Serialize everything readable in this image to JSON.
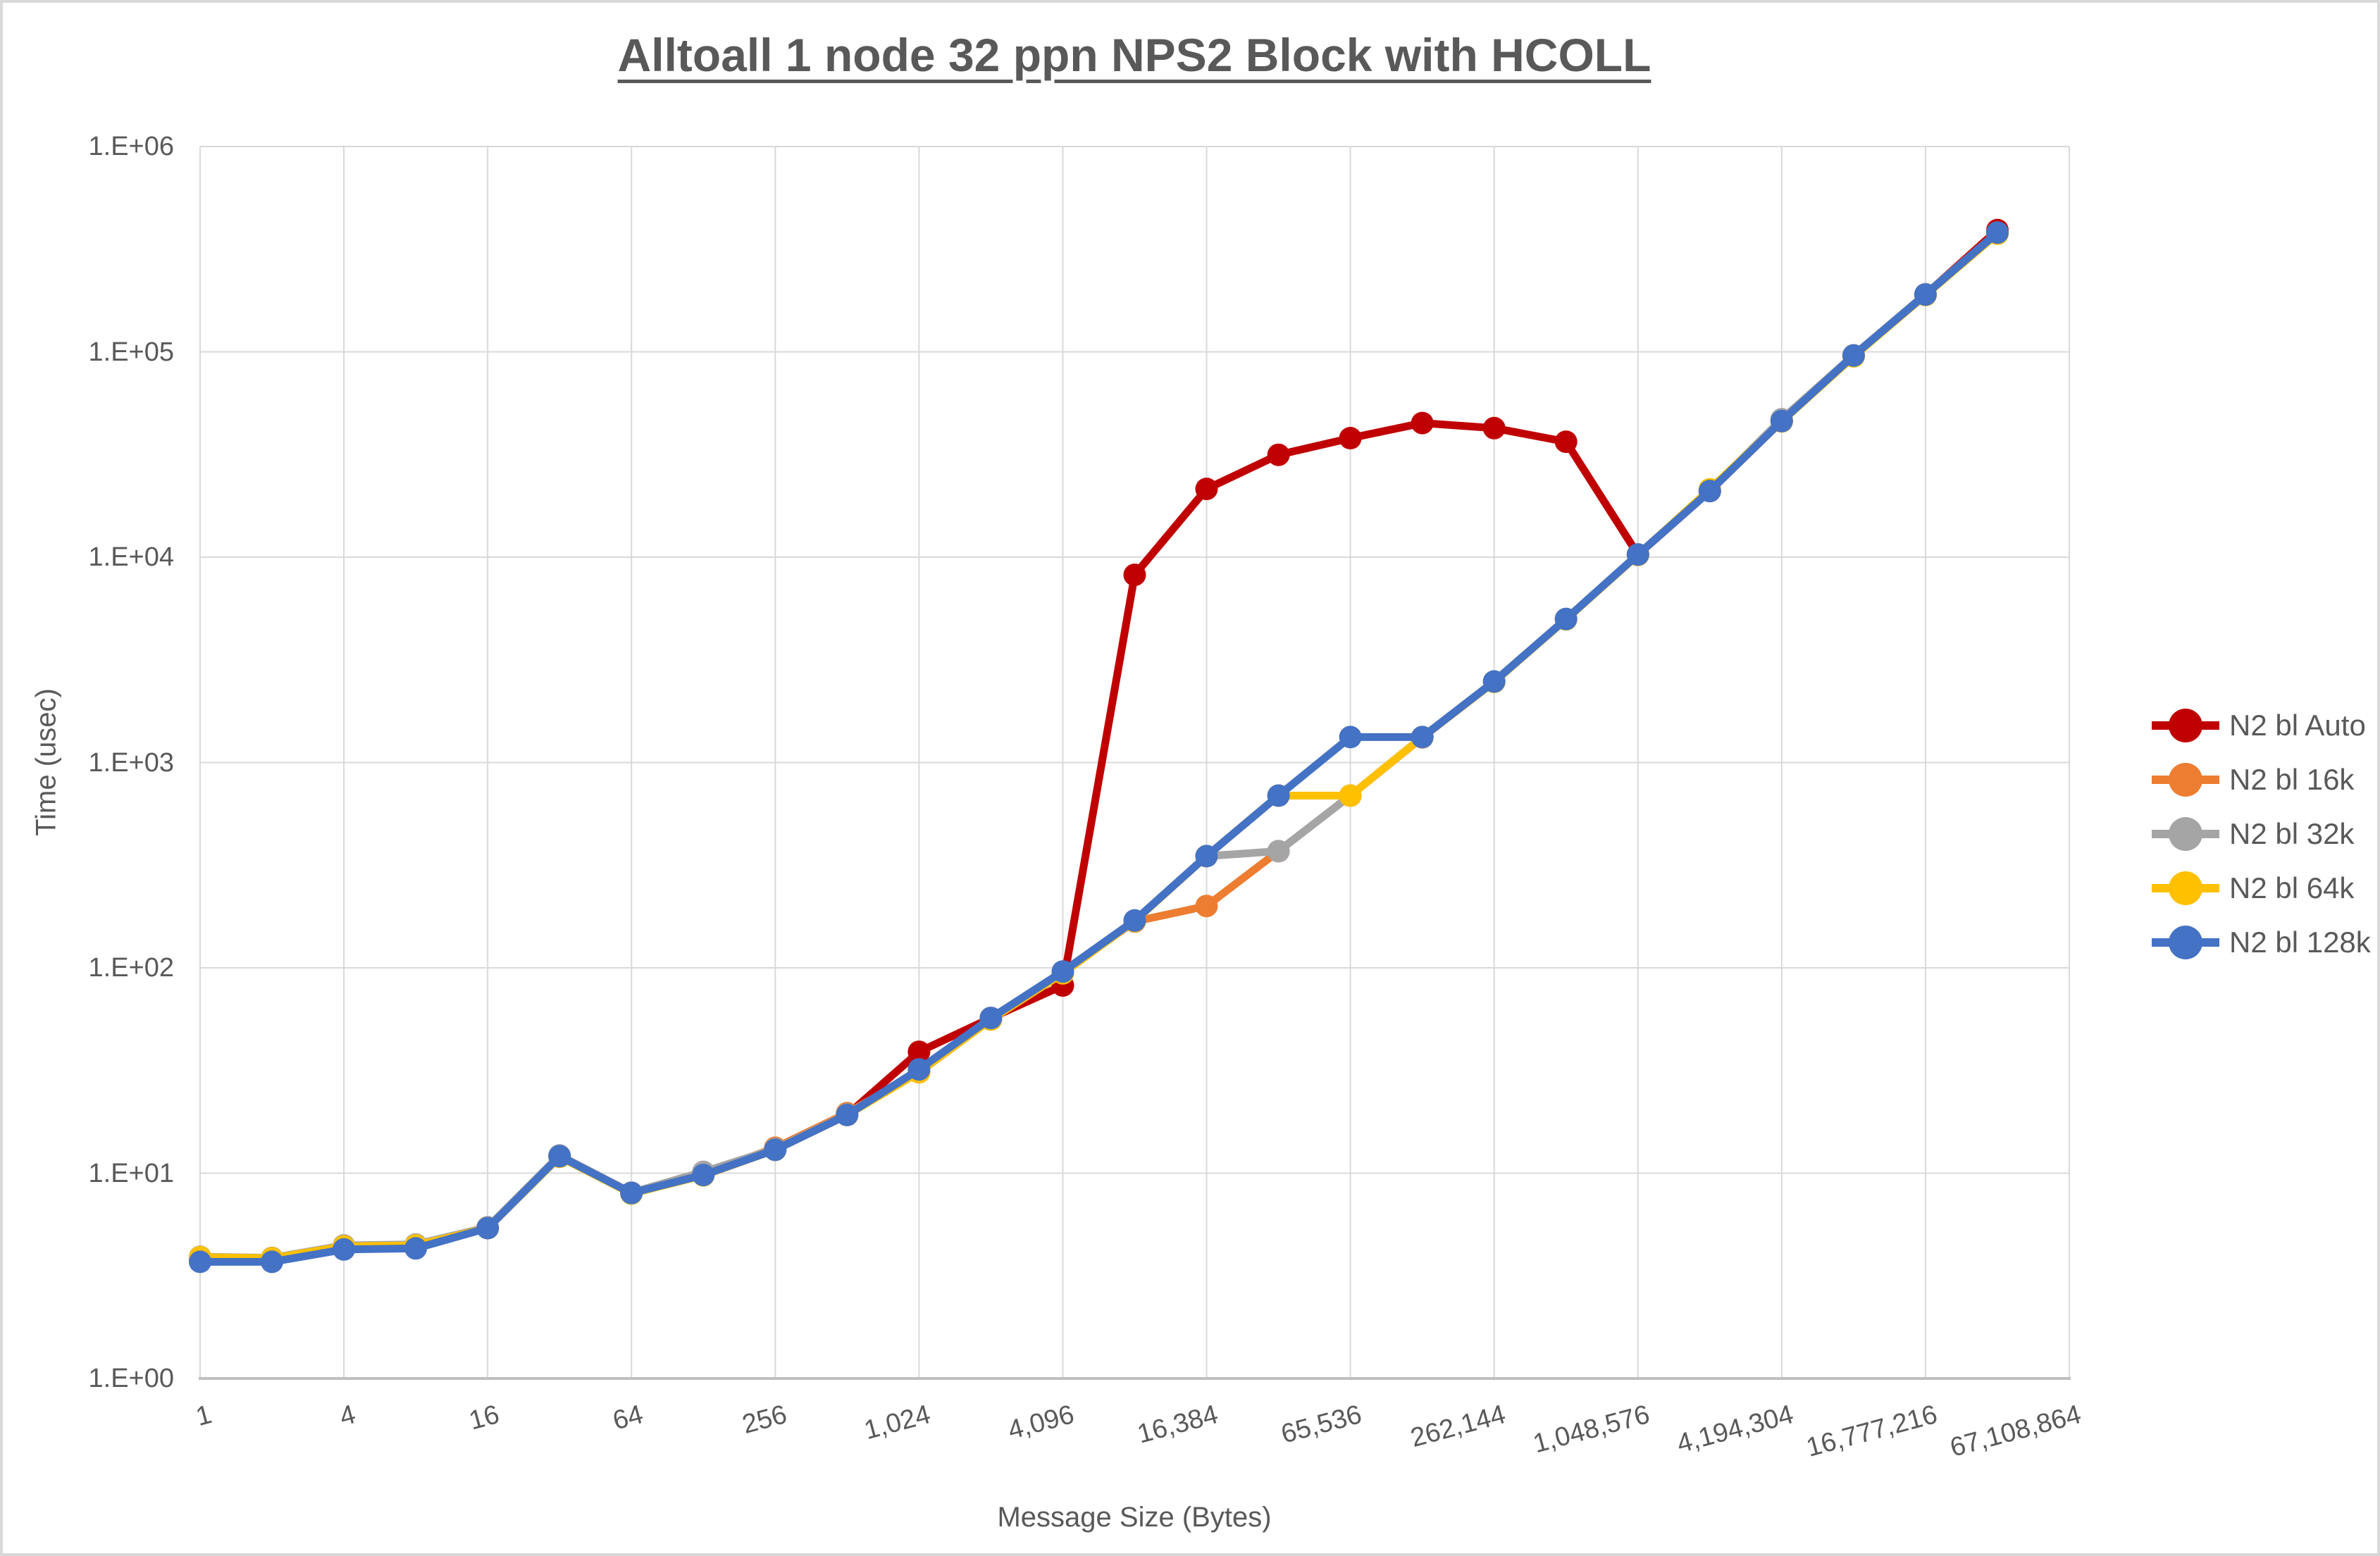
{
  "chart_data": {
    "type": "line",
    "title": "Alltoall 1 node 32 ppn NPS2 Block with HCOLL",
    "xlabel": "Message Size (Bytes)",
    "ylabel": "Time (usec)",
    "x_scale": "log2-category",
    "y_scale": "log10",
    "ylim": [
      1,
      1000000
    ],
    "grid": true,
    "legend_position": "right",
    "y_tick_labels": [
      "1.E+00",
      "1.E+01",
      "1.E+02",
      "1.E+03",
      "1.E+04",
      "1.E+05",
      "1.E+06"
    ],
    "x_tick_labels": [
      "1",
      "4",
      "16",
      "64",
      "256",
      "1,024",
      "4,096",
      "16,384",
      "65,536",
      "262,144",
      "1,048,576",
      "4,194,304",
      "16,777,216",
      "67,108,864"
    ],
    "categories": [
      1,
      2,
      4,
      8,
      16,
      32,
      64,
      128,
      256,
      512,
      1024,
      2048,
      4096,
      8192,
      16384,
      32768,
      65536,
      131072,
      262144,
      524288,
      1048576,
      2097152,
      4194304,
      8388608,
      16777216,
      33554432
    ],
    "series": [
      {
        "name": "N2 bl Auto",
        "color": "#C00000",
        "values": [
          3.8,
          3.75,
          4.3,
          4.35,
          5.4,
          12.1,
          8.0,
          9.8,
          13.0,
          19.2,
          39,
          57,
          82,
          8200,
          21500,
          31500,
          38000,
          45000,
          42500,
          36500,
          10300,
          21000,
          46000,
          96000,
          190000,
          392000
        ]
      },
      {
        "name": "N2 bl 16k",
        "color": "#ED7D31",
        "values": [
          3.85,
          3.8,
          4.35,
          4.4,
          5.42,
          12.1,
          8.0,
          9.85,
          13.3,
          19.6,
          31,
          56,
          95,
          168,
          200,
          370,
          690,
          1325,
          2470,
          4990,
          10280,
          21000,
          46000,
          95800,
          189500,
          379000
        ]
      },
      {
        "name": "N2 bl 32k",
        "color": "#A5A5A5",
        "values": [
          3.92,
          3.87,
          4.45,
          4.5,
          5.45,
          12.2,
          8.05,
          10.15,
          13.1,
          19.3,
          31.5,
          56.5,
          95.5,
          170,
          350,
          370,
          690,
          1330,
          2480,
          5000,
          10300,
          21100,
          47000,
          96200,
          191000,
          381000
        ]
      },
      {
        "name": "N2 bl 64k",
        "color": "#FFC000",
        "values": [
          3.9,
          3.85,
          4.4,
          4.45,
          5.4,
          12.0,
          7.95,
          9.75,
          13.0,
          19.2,
          31,
          56,
          94,
          169,
          350,
          690,
          690,
          1330,
          2470,
          4980,
          10250,
          21400,
          45800,
          95000,
          189000,
          376000
        ]
      },
      {
        "name": "N2 bl 128k",
        "color": "#4472C4",
        "values": [
          3.7,
          3.7,
          4.25,
          4.3,
          5.4,
          12.1,
          8.0,
          9.8,
          13.0,
          19.2,
          32,
          57,
          96,
          170,
          350,
          690,
          1330,
          1330,
          2480,
          5000,
          10300,
          21000,
          46000,
          96000,
          190000,
          381000
        ]
      }
    ],
    "colors": {
      "text": "#595959",
      "gridline": "#D9D9D9",
      "axis_line": "#BFBFBF",
      "background": "#FFFFFF"
    }
  }
}
